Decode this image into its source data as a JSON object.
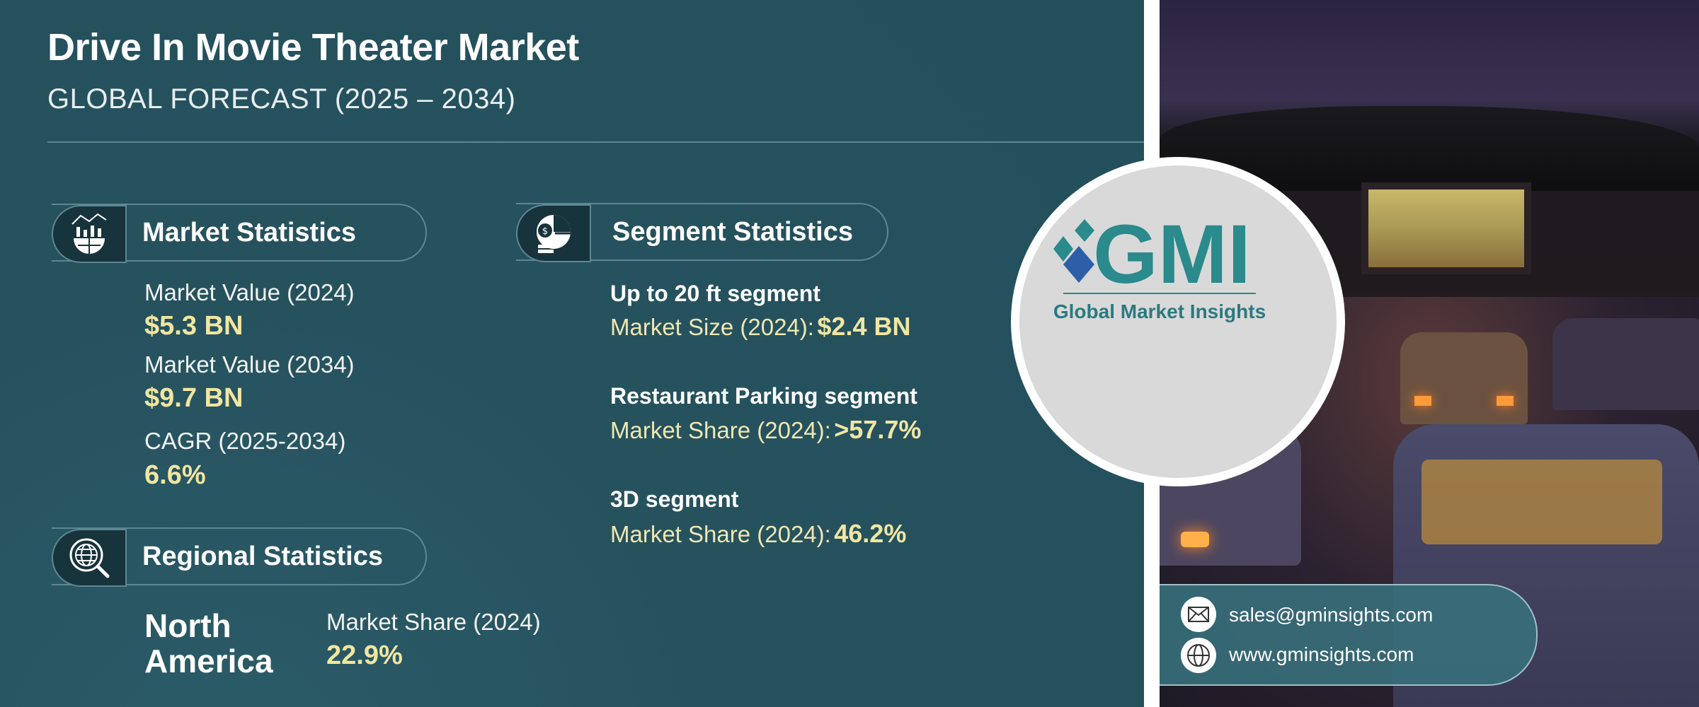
{
  "header": {
    "title": "Drive In Movie Theater Market",
    "subtitle": "GLOBAL FORECAST (2025 – 2034)"
  },
  "market_statistics": {
    "heading": "Market Statistics",
    "icon": "chart-globe-icon",
    "items": [
      {
        "label": "Market Value (2024)",
        "value": "$5.3 BN"
      },
      {
        "label": "Market Value (2034)",
        "value": "$9.7 BN"
      },
      {
        "label": "CAGR (2025-2034)",
        "value": "6.6%"
      }
    ]
  },
  "segment_statistics": {
    "heading": "Segment Statistics",
    "icon": "money-pie-icon",
    "items": [
      {
        "segment": "Up to 20 ft  segment",
        "label": "Market Size (2024):",
        "value": "$2.4 BN"
      },
      {
        "segment": "Restaurant Parking segment",
        "label": "Market Share (2024):",
        "value": ">57.7%"
      },
      {
        "segment": "3D segment",
        "label": "Market Share (2024):",
        "value": "46.2%"
      }
    ]
  },
  "regional_statistics": {
    "heading": "Regional Statistics",
    "icon": "globe-search-icon",
    "region_line1": "North",
    "region_line2": "America",
    "label": "Market Share (2024)",
    "value": "22.9%"
  },
  "logo": {
    "letters": "GMI",
    "name": "Global Market Insights"
  },
  "contact": {
    "email": "sales@gminsights.com",
    "website": "www.gminsights.com"
  },
  "colors": {
    "background": "#26525e",
    "value_yellow": "#f1e6a2",
    "logo_teal": "#2a8a8c",
    "logo_blue": "#2d5fa8"
  }
}
